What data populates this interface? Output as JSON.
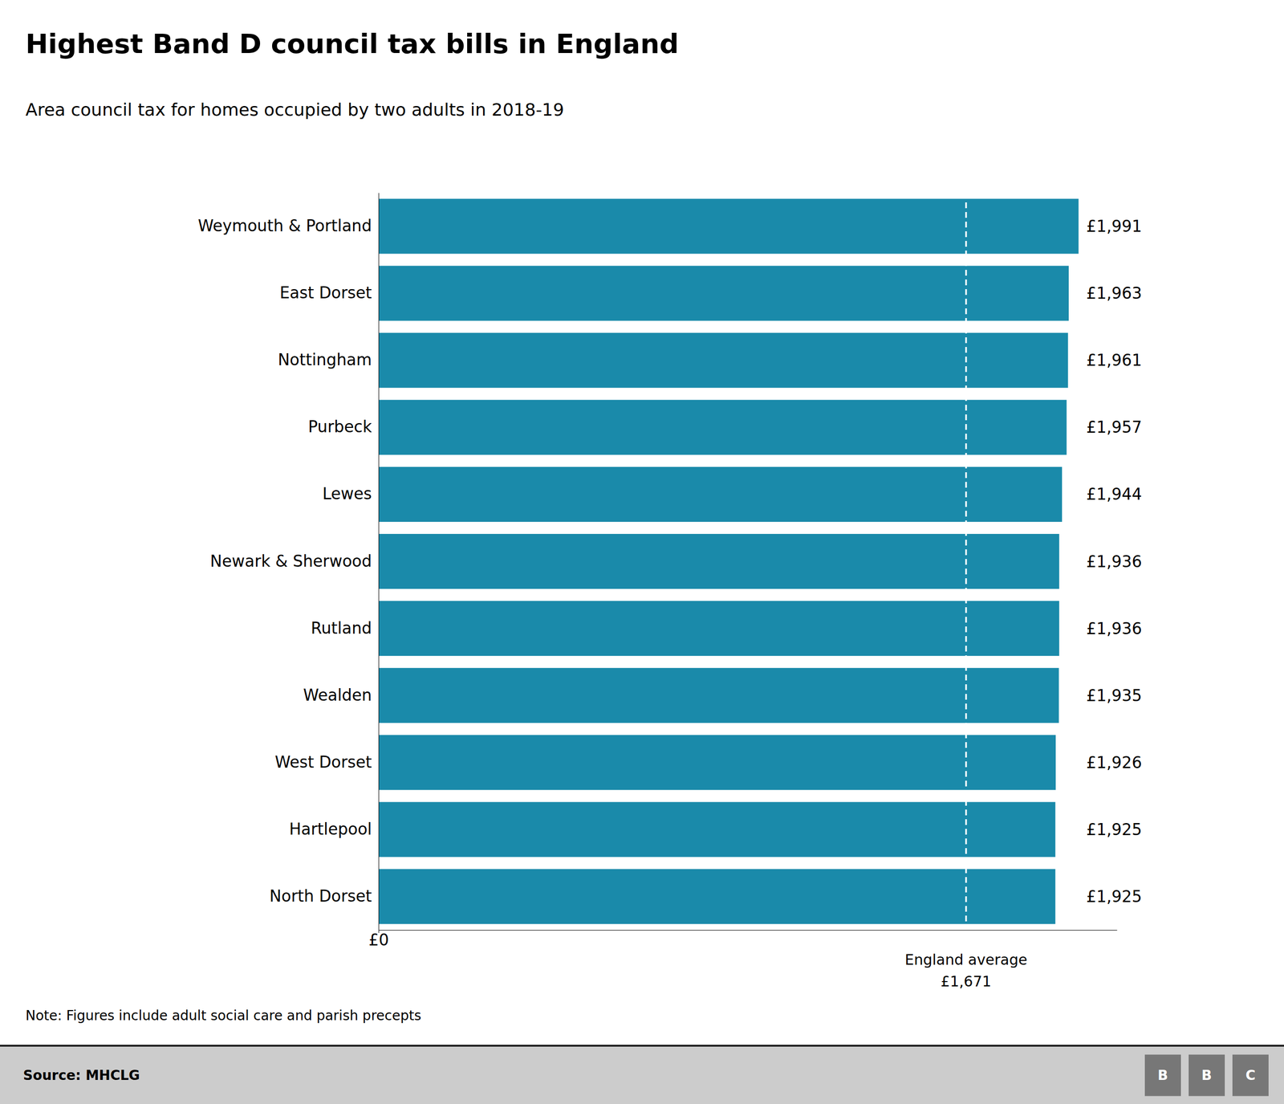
{
  "chart_data": {
    "type": "bar",
    "orientation": "horizontal",
    "title": "Highest Band D council tax bills in England",
    "subtitle": "Area council tax for homes occupied by two adults in 2018-19",
    "categories": [
      "Weymouth & Portland",
      "East Dorset",
      "Nottingham",
      "Purbeck",
      "Lewes",
      "Newark & Sherwood",
      "Rutland",
      "Wealden",
      "West Dorset",
      "Hartlepool",
      "North Dorset"
    ],
    "values": [
      1991,
      1963,
      1961,
      1957,
      1944,
      1936,
      1936,
      1935,
      1926,
      1925,
      1925
    ],
    "value_labels": [
      "£1,991",
      "£1,963",
      "£1,961",
      "£1,957",
      "£1,944",
      "£1,936",
      "£1,936",
      "£1,935",
      "£1,926",
      "£1,925",
      "£1,925"
    ],
    "data_labels": true,
    "color": "#1a8aaa",
    "xlim": [
      0,
      2100
    ],
    "xticks": [
      {
        "value": 0,
        "label": "£0"
      }
    ],
    "grid": false,
    "annotations": [
      {
        "x": 1671,
        "label": "England average",
        "value_label": "£1,671"
      }
    ],
    "note": "Note: Figures include adult social care and parish precepts",
    "source": "Source: MHCLG",
    "logo": [
      "B",
      "B",
      "C"
    ]
  }
}
